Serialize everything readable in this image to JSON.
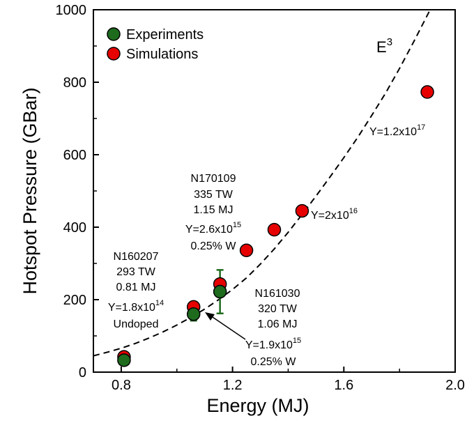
{
  "chart_data": {
    "type": "scatter",
    "xlabel": "Energy (MJ)",
    "ylabel": "Hotspot Pressure (GBar)",
    "xlim": [
      0.7,
      2.0
    ],
    "ylim": [
      0,
      1000
    ],
    "x_ticks": [
      "0.8",
      "1.2",
      "1.6",
      "2.0"
    ],
    "x_tick_values": [
      0.8,
      1.2,
      1.6,
      2.0
    ],
    "y_ticks": [
      "0",
      "200",
      "400",
      "600",
      "800",
      "1000"
    ],
    "y_tick_values": [
      0,
      200,
      400,
      600,
      800,
      1000
    ],
    "legend_position": "top-left",
    "series": [
      {
        "name": "Experiments",
        "color": "#1e6b1e",
        "points": [
          {
            "x": 0.81,
            "y": 33
          },
          {
            "x": 1.06,
            "y": 160,
            "err": 18
          },
          {
            "x": 1.155,
            "y": 222,
            "err": 60
          }
        ]
      },
      {
        "name": "Simulations",
        "color": "#e60000",
        "points": [
          {
            "x": 0.81,
            "y": 42
          },
          {
            "x": 1.06,
            "y": 180
          },
          {
            "x": 1.155,
            "y": 243
          },
          {
            "x": 1.25,
            "y": 336
          },
          {
            "x": 1.35,
            "y": 393
          },
          {
            "x": 1.45,
            "y": 445
          },
          {
            "x": 1.9,
            "y": 773
          }
        ]
      }
    ],
    "curve": {
      "label": "E",
      "label_sup": "3",
      "style": "dashed",
      "points": [
        [
          0.7,
          45
        ],
        [
          0.75,
          55
        ],
        [
          0.8,
          66
        ],
        [
          0.85,
          79
        ],
        [
          0.9,
          94
        ],
        [
          0.95,
          111
        ],
        [
          1.0,
          130
        ],
        [
          1.05,
          151
        ],
        [
          1.1,
          174
        ],
        [
          1.15,
          200
        ],
        [
          1.2,
          228
        ],
        [
          1.25,
          260
        ],
        [
          1.3,
          298
        ],
        [
          1.35,
          340
        ],
        [
          1.4,
          386
        ],
        [
          1.45,
          435
        ],
        [
          1.5,
          486
        ],
        [
          1.55,
          538
        ],
        [
          1.6,
          592
        ],
        [
          1.65,
          648
        ],
        [
          1.7,
          708
        ],
        [
          1.75,
          770
        ],
        [
          1.8,
          838
        ],
        [
          1.85,
          910
        ],
        [
          1.9,
          985
        ],
        [
          1.91,
          1000
        ]
      ]
    },
    "annotations": [
      {
        "lines": [
          "N170109",
          "335 TW",
          "1.15 MJ"
        ],
        "yield_base": "Y=2.6x10",
        "yield_exp": "15",
        "extra": "0.25% W"
      },
      {
        "lines": [
          "N160207",
          "293 TW",
          "0.81 MJ"
        ],
        "yield_base": "Y=1.8x10",
        "yield_exp": "14",
        "extra": "Undoped"
      },
      {
        "lines": [
          "N161030",
          "320 TW",
          "1.06 MJ"
        ],
        "yield_base": "",
        "yield_exp": "",
        "extra": ""
      },
      {
        "lines": [],
        "yield_base": "Y=1.9x10",
        "yield_exp": "15",
        "extra": "0.25% W"
      },
      {
        "lines": [],
        "yield_base": "Y=2x10",
        "yield_exp": "16",
        "extra": ""
      },
      {
        "lines": [],
        "yield_base": "Y=1.2x10",
        "yield_exp": "17",
        "extra": ""
      }
    ]
  }
}
